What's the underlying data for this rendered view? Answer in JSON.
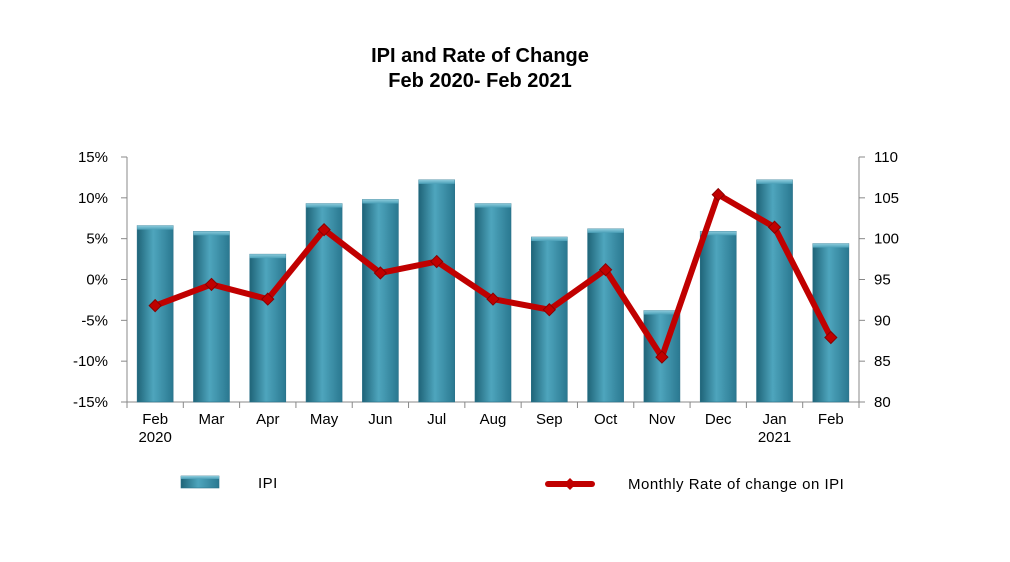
{
  "chart_data": {
    "type": "bar+line",
    "title_line1": "IPI and Rate of Change",
    "title_line2": "Feb 2020- Feb 2021",
    "categories": [
      [
        "Feb",
        "2020"
      ],
      [
        "Mar",
        ""
      ],
      [
        "Apr",
        ""
      ],
      [
        "May",
        ""
      ],
      [
        "Jun",
        ""
      ],
      [
        "Jul",
        ""
      ],
      [
        "Aug",
        ""
      ],
      [
        "Sep",
        ""
      ],
      [
        "Oct",
        ""
      ],
      [
        "Nov",
        ""
      ],
      [
        "Dec",
        ""
      ],
      [
        "Jan",
        "2021"
      ],
      [
        "Feb",
        ""
      ]
    ],
    "left_axis": {
      "ylim": [
        -15,
        15
      ],
      "ticks": [
        15,
        10,
        5,
        0,
        -5,
        -10,
        -15
      ],
      "tick_labels": [
        "15%",
        "10%",
        "5%",
        "0%",
        "-5%",
        "-10%",
        "-15%"
      ]
    },
    "right_axis": {
      "ylim": [
        80,
        110
      ],
      "ticks": [
        110,
        105,
        100,
        95,
        90,
        85,
        80
      ],
      "tick_labels": [
        "110",
        "105",
        "100",
        "95",
        "90",
        "85",
        "80"
      ]
    },
    "series": [
      {
        "name": "IPI",
        "kind": "bar",
        "axis": "right",
        "color": "#3d8fa8",
        "values": [
          101.6,
          100.9,
          98.1,
          104.3,
          104.8,
          107.2,
          104.3,
          100.2,
          101.2,
          91.2,
          100.9,
          107.2,
          99.4
        ]
      },
      {
        "name": "Monthly Rate of change on IPI",
        "kind": "line",
        "axis": "left",
        "color": "#c00000",
        "values": [
          -3.2,
          -0.6,
          -2.4,
          6.1,
          0.8,
          2.2,
          -2.4,
          -3.7,
          1.2,
          -9.5,
          10.4,
          6.4,
          -7.1
        ]
      }
    ],
    "legend": {
      "position": "bottom",
      "items": [
        "IPI",
        "Monthly Rate of change on IPI"
      ]
    }
  }
}
